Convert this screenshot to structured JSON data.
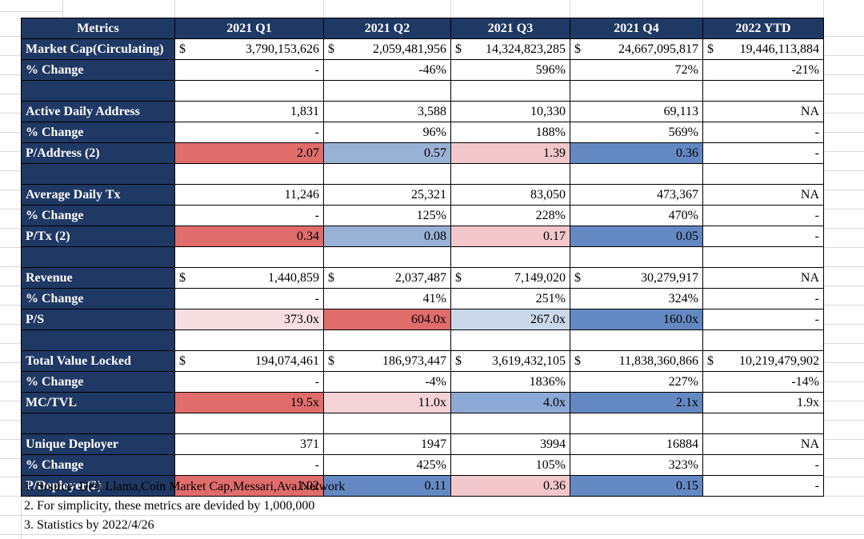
{
  "colors": {
    "header_bg": "#1F3864",
    "red": "#E06C6C",
    "pink": "#F1C7CB",
    "pink_light": "#F4D3D6",
    "pink_pale": "#F7DEE1",
    "blue": "#6489C2",
    "blue_mid": "#8CA8D4",
    "blue_light": "#9AB1D6",
    "blue_pale": "#CBD8EA"
  },
  "table": {
    "columns": [
      "Metrics",
      "2021 Q1",
      "2021 Q2",
      "2021 Q3",
      "2021 Q4",
      "2022 YTD"
    ],
    "rows": [
      {
        "label": "Market Cap(Circulating)",
        "cells": [
          {
            "prefix": "$",
            "text": "3,790,153,626"
          },
          {
            "prefix": "$",
            "text": "2,059,481,956"
          },
          {
            "prefix": "$",
            "text": "14,324,823,285"
          },
          {
            "prefix": "$",
            "text": "24,667,095,817"
          },
          {
            "prefix": "$",
            "text": "19,446,113,884"
          }
        ]
      },
      {
        "label": "% Change",
        "cells": [
          {
            "text": "-"
          },
          {
            "text": "-46%"
          },
          {
            "text": "596%"
          },
          {
            "text": "72%"
          },
          {
            "text": "-21%"
          }
        ]
      },
      {
        "blank": true
      },
      {
        "label": "Active Daily Address",
        "cells": [
          {
            "text": "1,831"
          },
          {
            "text": "3,588"
          },
          {
            "text": "10,330"
          },
          {
            "text": "69,113"
          },
          {
            "text": "NA"
          }
        ]
      },
      {
        "label": "% Change",
        "cells": [
          {
            "text": "-"
          },
          {
            "text": "96%"
          },
          {
            "text": "188%"
          },
          {
            "text": "569%"
          },
          {
            "text": "-"
          }
        ]
      },
      {
        "label": "P/Address (2)",
        "cells": [
          {
            "text": "2.07",
            "bg": "red"
          },
          {
            "text": "0.57",
            "bg": "blue_light"
          },
          {
            "text": "1.39",
            "bg": "pink"
          },
          {
            "text": "0.36",
            "bg": "blue"
          },
          {
            "text": "-"
          }
        ]
      },
      {
        "blank": true
      },
      {
        "label": "Average Daily Tx",
        "cells": [
          {
            "text": "11,246"
          },
          {
            "text": "25,321"
          },
          {
            "text": "83,050"
          },
          {
            "text": "473,367"
          },
          {
            "text": "NA"
          }
        ]
      },
      {
        "label": "% Change",
        "cells": [
          {
            "text": "-"
          },
          {
            "text": "125%"
          },
          {
            "text": "228%"
          },
          {
            "text": "470%"
          },
          {
            "text": "-"
          }
        ]
      },
      {
        "label": "P/Tx (2)",
        "cells": [
          {
            "text": "0.34",
            "bg": "red"
          },
          {
            "text": "0.08",
            "bg": "blue_light"
          },
          {
            "text": "0.17",
            "bg": "pink"
          },
          {
            "text": "0.05",
            "bg": "blue"
          },
          {
            "text": "-"
          }
        ]
      },
      {
        "blank": true
      },
      {
        "label": "Revenue",
        "cells": [
          {
            "prefix": "$",
            "text": "1,440,859"
          },
          {
            "prefix": "$",
            "text": "2,037,487"
          },
          {
            "prefix": "$",
            "text": "7,149,020"
          },
          {
            "prefix": "$",
            "text": "30,279,917"
          },
          {
            "text": "NA"
          }
        ]
      },
      {
        "label": "% Change",
        "cells": [
          {
            "text": "-"
          },
          {
            "text": "41%"
          },
          {
            "text": "251%"
          },
          {
            "text": "324%"
          },
          {
            "text": "-"
          }
        ]
      },
      {
        "label": "P/S",
        "cells": [
          {
            "text": "373.0x",
            "bg": "pink_pale"
          },
          {
            "text": "604.0x",
            "bg": "red"
          },
          {
            "text": "267.0x",
            "bg": "blue_pale"
          },
          {
            "text": "160.0x",
            "bg": "blue"
          },
          {
            "text": "-"
          }
        ]
      },
      {
        "blank": true
      },
      {
        "label": "Total Value Locked",
        "cells": [
          {
            "prefix": "$",
            "text": "194,074,461"
          },
          {
            "prefix": "$",
            "text": "186,973,447"
          },
          {
            "prefix": "$",
            "text": "3,619,432,105"
          },
          {
            "prefix": "$",
            "text": "11,838,360,866"
          },
          {
            "prefix": "$",
            "text": "10,219,479,902"
          }
        ]
      },
      {
        "label": "% Change",
        "cells": [
          {
            "text": "-"
          },
          {
            "text": "-4%"
          },
          {
            "text": "1836%"
          },
          {
            "text": "227%"
          },
          {
            "text": "-14%"
          }
        ]
      },
      {
        "label": "MC/TVL",
        "cells": [
          {
            "text": "19.5x",
            "bg": "red"
          },
          {
            "text": "11.0x",
            "bg": "pink_light"
          },
          {
            "text": "4.0x",
            "bg": "blue_mid"
          },
          {
            "text": "2.1x",
            "bg": "blue"
          },
          {
            "text": "1.9x"
          }
        ]
      },
      {
        "blank": true
      },
      {
        "label": "Unique Deployer",
        "cells": [
          {
            "text": "371"
          },
          {
            "text": "1947"
          },
          {
            "text": "3994"
          },
          {
            "text": "16884"
          },
          {
            "text": "NA"
          }
        ]
      },
      {
        "label": "% Change",
        "cells": [
          {
            "text": "-"
          },
          {
            "text": "425%"
          },
          {
            "text": "105%"
          },
          {
            "text": "323%"
          },
          {
            "text": "-"
          }
        ]
      },
      {
        "label": "P/Deployer(2)",
        "cells": [
          {
            "text": "1.02",
            "bg": "red"
          },
          {
            "text": "0.11",
            "bg": "blue"
          },
          {
            "text": "0.36",
            "bg": "pink"
          },
          {
            "text": "0.15",
            "bg": "blue"
          },
          {
            "text": "-"
          }
        ]
      }
    ]
  },
  "notes": [
    "1. Source: Defi Llama,Coin Market Cap,Messari,Ava.Network",
    "2. For simplicity, these metrics are devided by 1,000,000",
    "3. Statistics by 2022/4/26"
  ]
}
